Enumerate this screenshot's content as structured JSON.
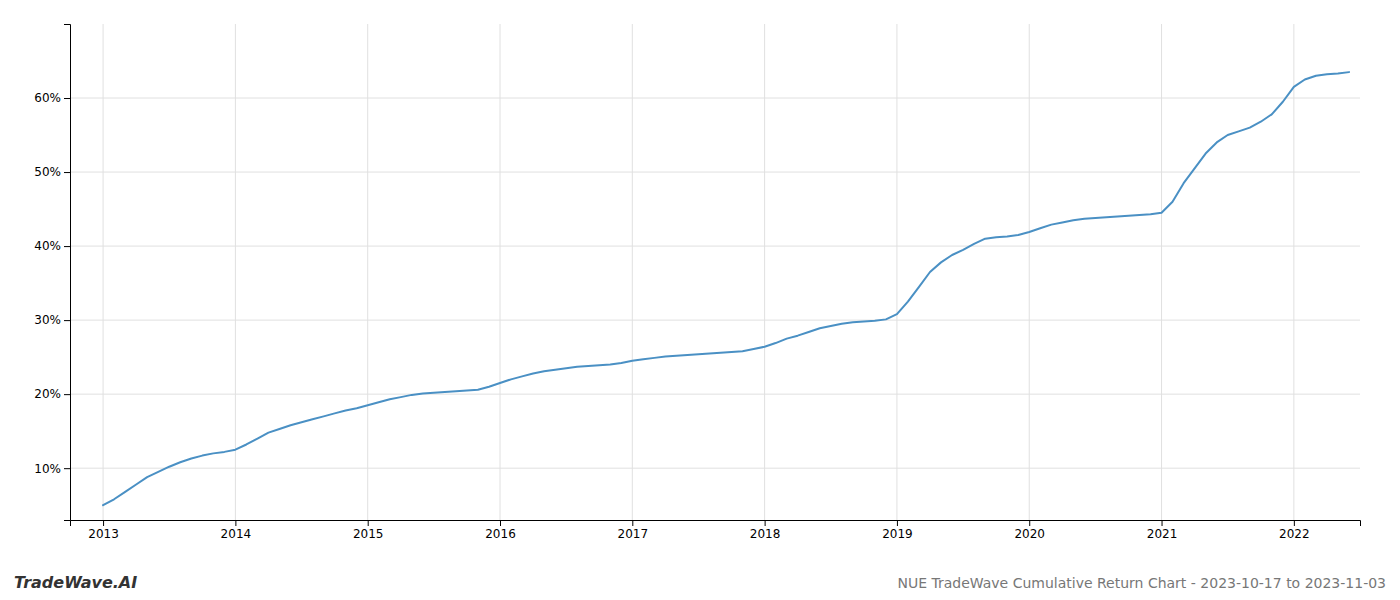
{
  "chart_data": {
    "type": "line",
    "title": "NUE TradeWave Cumulative Return Chart - 2023-10-17 to 2023-11-03",
    "annotations": [
      "TradeWave.AI"
    ],
    "color": "#4a90c4",
    "grid": true,
    "x": [
      2013.0,
      2013.083,
      2013.167,
      2013.25,
      2013.333,
      2013.417,
      2013.5,
      2013.583,
      2013.667,
      2013.75,
      2013.833,
      2013.917,
      2014.0,
      2014.083,
      2014.167,
      2014.25,
      2014.333,
      2014.417,
      2014.5,
      2014.583,
      2014.667,
      2014.75,
      2014.833,
      2014.917,
      2015.0,
      2015.083,
      2015.167,
      2015.25,
      2015.333,
      2015.417,
      2015.5,
      2015.583,
      2015.667,
      2015.75,
      2015.833,
      2015.917,
      2016.0,
      2016.083,
      2016.167,
      2016.25,
      2016.333,
      2016.417,
      2016.5,
      2016.583,
      2016.667,
      2016.75,
      2016.833,
      2016.917,
      2017.0,
      2017.083,
      2017.167,
      2017.25,
      2017.333,
      2017.417,
      2017.5,
      2017.583,
      2017.667,
      2017.75,
      2017.833,
      2017.917,
      2018.0,
      2018.083,
      2018.167,
      2018.25,
      2018.333,
      2018.417,
      2018.5,
      2018.583,
      2018.667,
      2018.75,
      2018.833,
      2018.917,
      2019.0,
      2019.083,
      2019.167,
      2019.25,
      2019.333,
      2019.417,
      2019.5,
      2019.583,
      2019.667,
      2019.75,
      2019.833,
      2019.917,
      2020.0,
      2020.083,
      2020.167,
      2020.25,
      2020.333,
      2020.417,
      2020.5,
      2020.583,
      2020.667,
      2020.75,
      2020.833,
      2020.917,
      2021.0,
      2021.083,
      2021.167,
      2021.25,
      2021.333,
      2021.417,
      2021.5,
      2021.583,
      2021.667,
      2021.75,
      2021.833,
      2021.917,
      2022.0,
      2022.083,
      2022.167,
      2022.25,
      2022.333,
      2022.417
    ],
    "values": [
      5.0,
      5.8,
      6.8,
      7.8,
      8.8,
      9.5,
      10.2,
      10.8,
      11.3,
      11.7,
      12.0,
      12.2,
      12.5,
      13.2,
      14.0,
      14.8,
      15.3,
      15.8,
      16.2,
      16.6,
      17.0,
      17.4,
      17.8,
      18.1,
      18.5,
      18.9,
      19.3,
      19.6,
      19.9,
      20.1,
      20.2,
      20.3,
      20.4,
      20.5,
      20.6,
      21.0,
      21.5,
      22.0,
      22.4,
      22.8,
      23.1,
      23.3,
      23.5,
      23.7,
      23.8,
      23.9,
      24.0,
      24.2,
      24.5,
      24.7,
      24.9,
      25.1,
      25.2,
      25.3,
      25.4,
      25.5,
      25.6,
      25.7,
      25.8,
      26.1,
      26.4,
      26.9,
      27.5,
      27.9,
      28.4,
      28.9,
      29.2,
      29.5,
      29.7,
      29.8,
      29.9,
      30.1,
      30.8,
      32.5,
      34.5,
      36.5,
      37.8,
      38.8,
      39.5,
      40.3,
      41.0,
      41.2,
      41.3,
      41.5,
      41.9,
      42.4,
      42.9,
      43.2,
      43.5,
      43.7,
      43.8,
      43.9,
      44.0,
      44.1,
      44.2,
      44.3,
      44.5,
      46.0,
      48.5,
      50.5,
      52.5,
      54.0,
      55.0,
      55.5,
      56.0,
      56.8,
      57.8,
      59.5,
      61.5,
      62.5,
      63.0,
      63.2,
      63.3,
      63.5
    ],
    "xlim": [
      2012.75,
      2022.5
    ],
    "xticks": [
      2013,
      2014,
      2015,
      2016,
      2017,
      2018,
      2019,
      2020,
      2021,
      2022
    ],
    "ylim": [
      3,
      70
    ],
    "yticks": [
      {
        "value": 10,
        "label": "10%"
      },
      {
        "value": 20,
        "label": "20%"
      },
      {
        "value": 30,
        "label": "30%"
      },
      {
        "value": 40,
        "label": "40%"
      },
      {
        "value": 50,
        "label": "50%"
      },
      {
        "value": 60,
        "label": "60%"
      }
    ]
  }
}
